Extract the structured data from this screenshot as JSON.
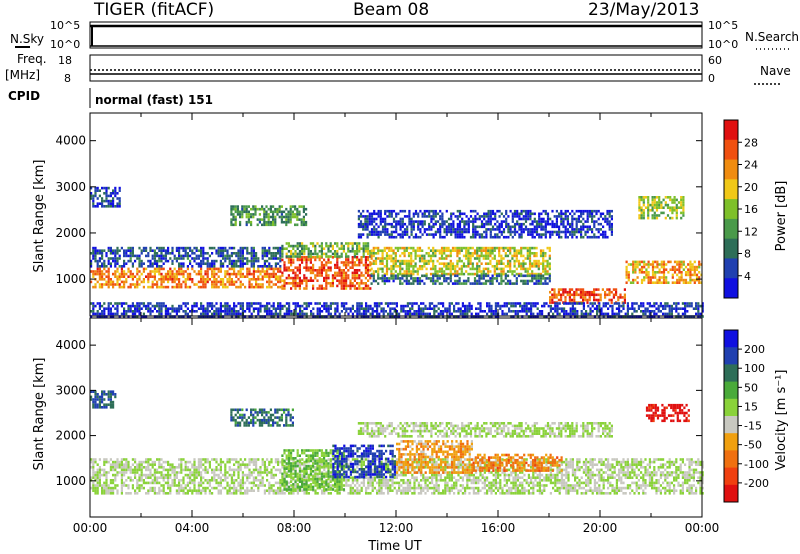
{
  "header": {
    "station": "TIGER (fitACF)",
    "beam": "Beam 08",
    "date": "23/May/2013"
  },
  "strip": {
    "nsky_label": "N.Sky",
    "nsearch_label": "N.Search",
    "freq_label_1": "Freq.",
    "freq_label_2": "[MHz]",
    "nave_label": "Nave",
    "cpid_label": "CPID",
    "cpid_text": "normal (fast) 151",
    "nsky_ticks": [
      "10^5",
      "10^0"
    ],
    "nsearch_ticks": [
      "10^5",
      "10^0"
    ],
    "freq_ticks": [
      "18",
      "8"
    ],
    "nave_ticks": [
      "60",
      "0"
    ]
  },
  "colors": {
    "power_scale": [
      "#1010e0",
      "#2040b0",
      "#2e6e58",
      "#4a9a4a",
      "#7ec02a",
      "#f0c818",
      "#f08c10",
      "#f05010",
      "#e01010"
    ],
    "velocity_scale": [
      "#1010e0",
      "#2040b0",
      "#2e6e58",
      "#4aaa3a",
      "#8ad23a",
      "#c8c8c0",
      "#f0a010",
      "#f07010",
      "#f04010",
      "#e01010"
    ]
  },
  "chart_data": [
    {
      "type": "heatmap",
      "name": "power-panel",
      "xlabel": "",
      "ylabel": "Slant Range [km]",
      "x_range_hours": [
        0,
        24
      ],
      "ylim": [
        200,
        4600
      ],
      "y_ticks": [
        "1000",
        "2000",
        "3000",
        "4000"
      ],
      "colorbar": {
        "label": "Power [dB]",
        "range": [
          0,
          32
        ],
        "ticks": [
          "4",
          "8",
          "12",
          "16",
          "20",
          "24",
          "28"
        ]
      },
      "regions": [
        {
          "t0": 0.0,
          "t1": 7.5,
          "r0": 800,
          "r1": 1250,
          "value": 24
        },
        {
          "t0": 0.0,
          "t1": 7.5,
          "r0": 1250,
          "r1": 1700,
          "value": 6
        },
        {
          "t0": 7.5,
          "t1": 11.0,
          "r0": 800,
          "r1": 1500,
          "value": 26
        },
        {
          "t0": 7.5,
          "t1": 11.0,
          "r0": 1500,
          "r1": 1800,
          "value": 14
        },
        {
          "t0": 11.0,
          "t1": 18.0,
          "r0": 1100,
          "r1": 1700,
          "value": 18
        },
        {
          "t0": 11.0,
          "t1": 18.0,
          "r0": 900,
          "r1": 1100,
          "value": 8
        },
        {
          "t0": 18.0,
          "t1": 21.0,
          "r0": 500,
          "r1": 800,
          "value": 27
        },
        {
          "t0": 21.0,
          "t1": 24.0,
          "r0": 900,
          "r1": 1400,
          "value": 22
        },
        {
          "t0": 0.0,
          "t1": 1.2,
          "r0": 2600,
          "r1": 3000,
          "value": 5
        },
        {
          "t0": 5.5,
          "t1": 8.5,
          "r0": 2200,
          "r1": 2600,
          "value": 12
        },
        {
          "t0": 10.5,
          "t1": 20.5,
          "r0": 1900,
          "r1": 2500,
          "value": 4
        },
        {
          "t0": 21.5,
          "t1": 23.3,
          "r0": 2300,
          "r1": 2800,
          "value": 16
        },
        {
          "t0": 0.0,
          "t1": 24.0,
          "r0": 200,
          "r1": 500,
          "value": 4
        }
      ]
    },
    {
      "type": "heatmap",
      "name": "velocity-panel",
      "xlabel": "Time UT",
      "ylabel": "Slant Range [km]",
      "x_range_hours": [
        0,
        24
      ],
      "x_ticks": [
        "00:00",
        "04:00",
        "08:00",
        "12:00",
        "16:00",
        "20:00",
        "00:00"
      ],
      "ylim": [
        200,
        4600
      ],
      "y_ticks": [
        "1000",
        "2000",
        "3000",
        "4000"
      ],
      "colorbar": {
        "label": "Velocity [m s⁻¹]",
        "range": [
          -250,
          250
        ],
        "ticks": [
          "200",
          "100",
          "50",
          "15",
          "-15",
          "-50",
          "-100",
          "-200"
        ]
      },
      "regions": [
        {
          "t0": 0.0,
          "t1": 24.0,
          "r0": 700,
          "r1": 1500,
          "value": 0
        },
        {
          "t0": 7.5,
          "t1": 10.0,
          "r0": 800,
          "r1": 1700,
          "value": 50
        },
        {
          "t0": 9.5,
          "t1": 12.0,
          "r0": 1100,
          "r1": 1800,
          "value": 180
        },
        {
          "t0": 12.0,
          "t1": 15.0,
          "r0": 1200,
          "r1": 1900,
          "value": -80
        },
        {
          "t0": 15.0,
          "t1": 18.5,
          "r0": 1200,
          "r1": 1600,
          "value": -110
        },
        {
          "t0": 0.0,
          "t1": 1.0,
          "r0": 2600,
          "r1": 3000,
          "value": 150
        },
        {
          "t0": 5.5,
          "t1": 8.0,
          "r0": 2200,
          "r1": 2600,
          "value": 130
        },
        {
          "t0": 21.8,
          "t1": 23.5,
          "r0": 2300,
          "r1": 2700,
          "value": -220
        },
        {
          "t0": 10.5,
          "t1": 20.5,
          "r0": 2000,
          "r1": 2300,
          "value": 5
        }
      ]
    }
  ]
}
